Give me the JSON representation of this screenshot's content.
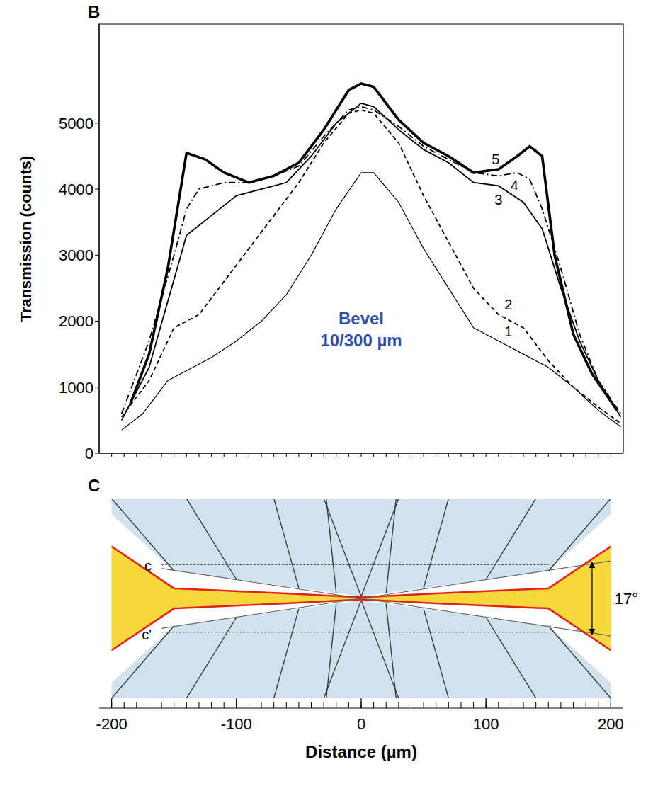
{
  "chart_data": {
    "type": "line",
    "panel": "B",
    "ylabel": "Transmission (counts)",
    "annotation": "Bevel 10/300 µm",
    "xlim": [
      -210,
      210
    ],
    "xticks": [
      -200,
      -190,
      -180,
      -170,
      -160,
      -150,
      -140,
      -130,
      -120,
      -110,
      -100,
      -90,
      -80,
      -70,
      -60,
      -50,
      -40,
      -30,
      -20,
      -10,
      0,
      10,
      20,
      30,
      40,
      50,
      60,
      70,
      80,
      90,
      100,
      110,
      120,
      130,
      140,
      150,
      160,
      170,
      180,
      190,
      200
    ],
    "ylim": [
      0,
      6500
    ],
    "yticks": [
      0,
      1000,
      2000,
      3000,
      4000,
      5000
    ],
    "tick_labels": "y",
    "series": [
      {
        "name": "1",
        "color": "#000000",
        "line_style": "solid",
        "x": [
          -192,
          -175,
          -155,
          -140,
          -120,
          -100,
          -80,
          -60,
          -40,
          -20,
          0,
          10,
          30,
          50,
          70,
          90,
          110,
          130,
          150,
          170,
          190,
          208
        ],
        "values": [
          350,
          600,
          1100,
          1250,
          1450,
          1700,
          2000,
          2400,
          3000,
          3700,
          4250,
          4250,
          3800,
          3100,
          2500,
          1900,
          1700,
          1500,
          1300,
          1000,
          650,
          400
        ]
      },
      {
        "name": "2",
        "color": "#000000",
        "line_style": "dashed",
        "x": [
          -192,
          -170,
          -150,
          -130,
          -110,
          -90,
          -70,
          -50,
          -30,
          -10,
          0,
          10,
          30,
          50,
          70,
          90,
          110,
          130,
          150,
          170,
          190,
          208
        ],
        "values": [
          550,
          1100,
          1900,
          2100,
          2600,
          3100,
          3600,
          4100,
          4700,
          5150,
          5200,
          5150,
          4700,
          3900,
          3200,
          2500,
          2100,
          1900,
          1400,
          1000,
          700,
          450
        ]
      },
      {
        "name": "3",
        "color": "#000000",
        "line_style": "solid",
        "x": [
          -192,
          -170,
          -155,
          -140,
          -120,
          -100,
          -80,
          -60,
          -40,
          -20,
          0,
          10,
          30,
          50,
          70,
          90,
          110,
          130,
          145,
          160,
          175,
          190,
          208
        ],
        "values": [
          500,
          1300,
          2300,
          3300,
          3600,
          3900,
          4000,
          4100,
          4500,
          5000,
          5300,
          5250,
          4900,
          4600,
          4400,
          4100,
          4050,
          3800,
          3400,
          2500,
          1700,
          1100,
          550
        ]
      },
      {
        "name": "4",
        "color": "#000000",
        "line_style": "dashdot",
        "x": [
          -192,
          -170,
          -150,
          -140,
          -130,
          -110,
          -90,
          -70,
          -50,
          -30,
          -10,
          0,
          10,
          30,
          50,
          70,
          90,
          110,
          125,
          135,
          145,
          160,
          175,
          190,
          208
        ],
        "values": [
          600,
          1700,
          3000,
          3700,
          4000,
          4100,
          4100,
          4200,
          4350,
          4800,
          5200,
          5250,
          5200,
          4950,
          4650,
          4450,
          4250,
          4200,
          4250,
          4150,
          3700,
          2800,
          1800,
          1100,
          600
        ]
      },
      {
        "name": "5",
        "color": "#000000",
        "line_style": "solid",
        "x": [
          -185,
          -170,
          -155,
          -140,
          -125,
          -110,
          -90,
          -70,
          -50,
          -30,
          -10,
          0,
          10,
          30,
          50,
          70,
          90,
          110,
          125,
          135,
          145,
          155,
          170,
          185,
          205
        ],
        "values": [
          750,
          1500,
          2800,
          4550,
          4450,
          4250,
          4100,
          4200,
          4400,
          4900,
          5500,
          5600,
          5550,
          5050,
          4700,
          4500,
          4250,
          4300,
          4500,
          4650,
          4500,
          3000,
          1800,
          1200,
          650
        ]
      }
    ]
  },
  "diagram": {
    "panel": "C",
    "xlabel": "Distance (µm)",
    "xlim": [
      -210,
      210
    ],
    "xticks": [
      -200,
      -100,
      0,
      100,
      200
    ],
    "minor_ticks": [
      -200,
      -190,
      -180,
      -170,
      -160,
      -150,
      -140,
      -130,
      -120,
      -110,
      -100,
      -90,
      -80,
      -70,
      -60,
      -50,
      -40,
      -30,
      -20,
      -10,
      0,
      10,
      20,
      30,
      40,
      50,
      60,
      70,
      80,
      90,
      100,
      110,
      120,
      130,
      140,
      150,
      160,
      170,
      180,
      190,
      200
    ],
    "labels": {
      "upper_line": "c",
      "lower_line": "c'",
      "angle": "17°"
    }
  }
}
